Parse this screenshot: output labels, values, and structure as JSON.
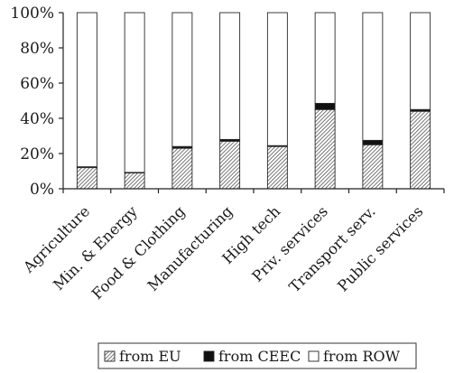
{
  "chart_data": {
    "type": "bar",
    "stacked": true,
    "percent_stacked": true,
    "categories": [
      "Agriculture",
      "Min. & Energy",
      "Food & Clothing",
      "Manufacturing",
      "High tech",
      "Priv. services",
      "Transport serv.",
      "Public services"
    ],
    "series": [
      {
        "name": "from EU",
        "values": [
          12,
          9,
          23,
          27,
          24,
          45,
          25,
          44
        ],
        "pattern": "diagonal-hatch"
      },
      {
        "name": "from CEEC",
        "values": [
          0.5,
          0.3,
          1.0,
          1.0,
          0.5,
          3.5,
          2.5,
          1.0
        ],
        "color": "#111111"
      },
      {
        "name": "from ROW",
        "values": [
          87.5,
          90.7,
          76.0,
          72.0,
          75.5,
          51.5,
          72.5,
          55.0
        ],
        "color": "#ffffff"
      }
    ],
    "yticks": [
      "0%",
      "20%",
      "40%",
      "60%",
      "80%",
      "100%"
    ],
    "ylim": [
      0,
      100
    ],
    "title": "",
    "xlabel": "",
    "ylabel": "",
    "legend": {
      "position": "bottom",
      "entries": [
        "from EU",
        "from CEEC",
        "from ROW"
      ]
    },
    "grid": false
  }
}
